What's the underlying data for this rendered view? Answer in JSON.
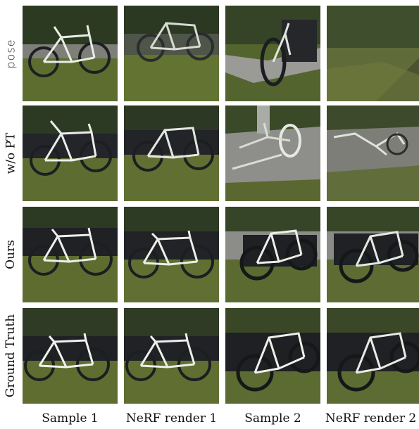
{
  "rows": [
    {
      "label": "pose",
      "style": "mono"
    },
    {
      "label": "w/o PT",
      "style": "serif"
    },
    {
      "label": "Ours",
      "style": "serif"
    },
    {
      "label": "Ground Truth",
      "style": "serif"
    }
  ],
  "columns": [
    "Sample 1",
    "NeRF render 1",
    "Sample 2",
    "NeRF render 2"
  ],
  "colors": {
    "grass": "#5b6b2e",
    "foliage": "#2f3a22",
    "path": "#8a8a86",
    "bench": "#1f2024",
    "bike": "#e9ece6"
  }
}
